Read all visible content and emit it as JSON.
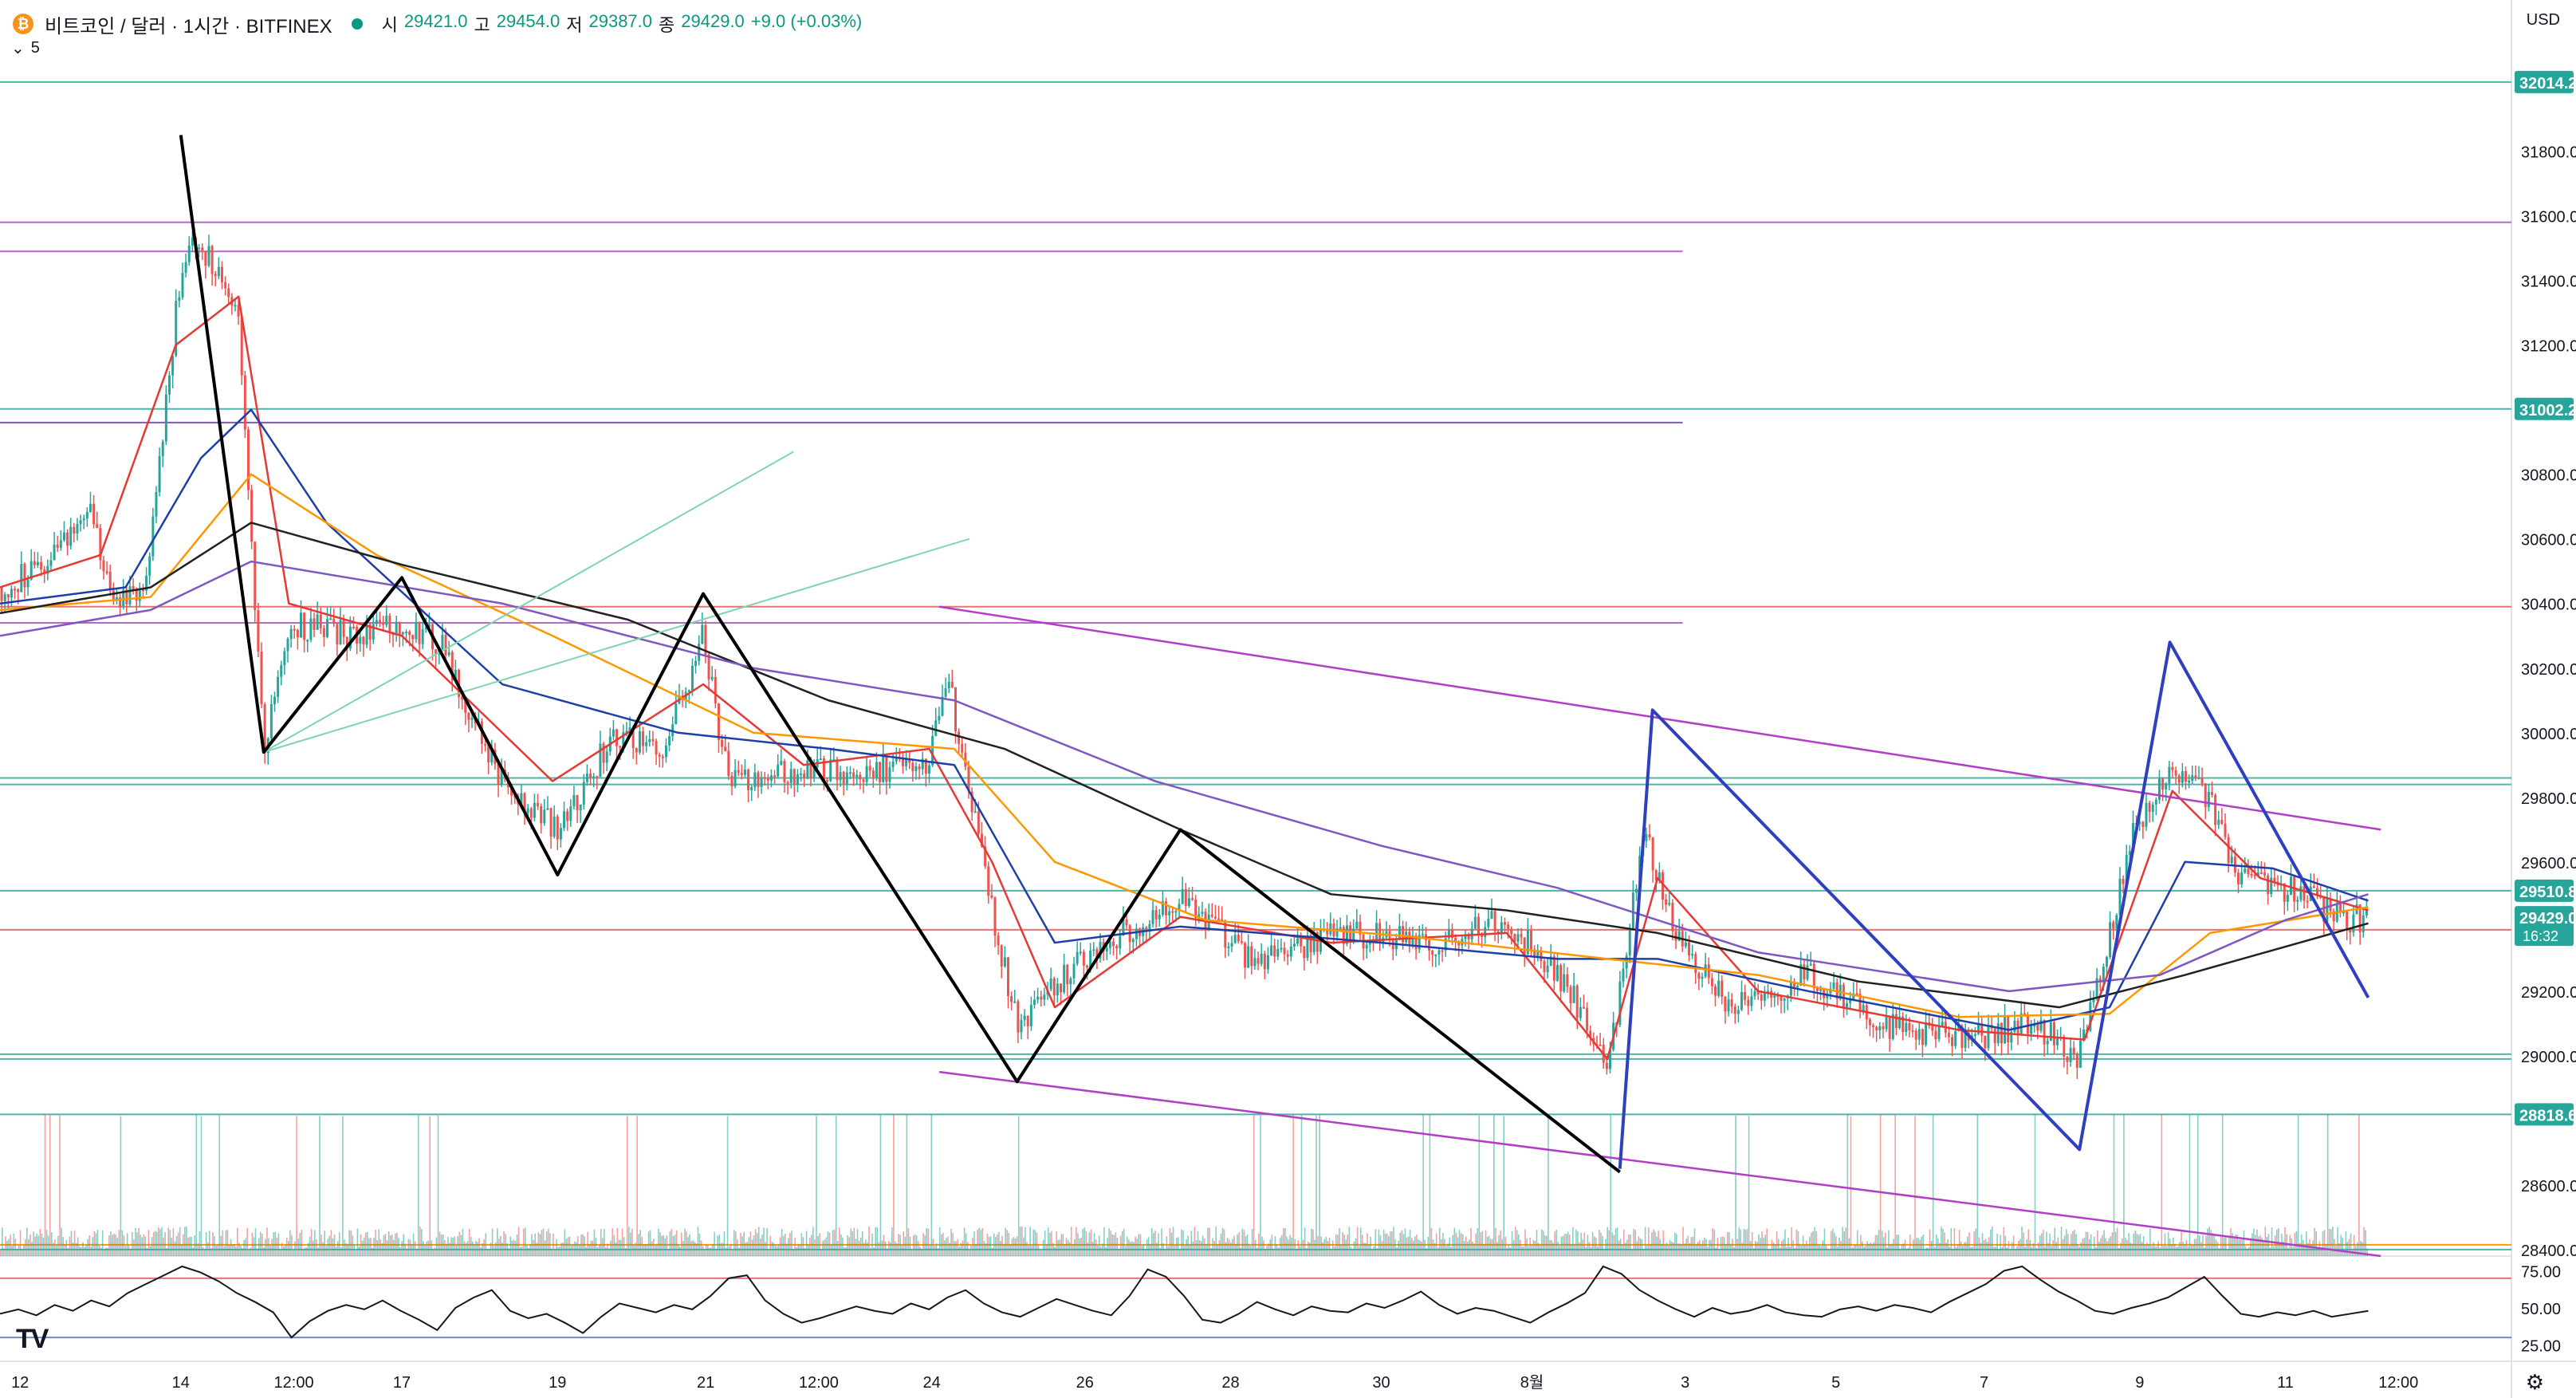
{
  "header": {
    "symbol": "비트코인 / 달러 · 1시간 · BITFINEX",
    "coin_glyph": "₿",
    "open_label": "시",
    "open": "29421.0",
    "high_label": "고",
    "high": "29454.0",
    "low_label": "저",
    "low": "29387.0",
    "close_label": "종",
    "close": "29429.0",
    "change": "+9.0 (+0.03%)",
    "sub_caret": "⌄",
    "sub_value": "5",
    "currency": "USD"
  },
  "colors": {
    "up": "#26a69a",
    "down": "#ef5350",
    "hline_teal": "#4db6ac",
    "hline_red": "#e57373",
    "hline_purple": "#ba68c8",
    "ema_fast": "#e53935",
    "ema_mid": "#1e3fa8",
    "ema_orange": "#ff9800",
    "ema_black": "#212121",
    "ema_purple": "#7e57c2",
    "pattern_black": "#000000",
    "pattern_blue": "#2e3fbf",
    "channel_purple": "#b23ec8",
    "fib_teal": "#7fd3b4"
  },
  "icons": {
    "logo": "tradingview-logo",
    "settings": "gear-icon"
  },
  "logo_text": "TV",
  "settings_glyph": "⚙",
  "chart_data": [
    {
      "type": "candlestick",
      "title": "비트코인 / 달러 · 1시간 · BITFINEX",
      "ylim": [
        28380,
        32120
      ],
      "x_ticks": [
        "12",
        "14",
        "12:00",
        "17",
        "19",
        "21",
        "12:00",
        "24",
        "26",
        "28",
        "30",
        "8월",
        "3",
        "5",
        "7",
        "9",
        "11",
        "12:00"
      ],
      "y_ticks": [
        31800,
        31600,
        31400,
        31200,
        30800,
        30600,
        30400,
        30200,
        30000,
        29800,
        29600,
        29200,
        29000,
        28600,
        28400
      ],
      "price_badges": [
        {
          "label": "32014.2",
          "value": 32014.2,
          "color": "#26a69a"
        },
        {
          "label": "31002.2",
          "value": 31002.2,
          "color": "#26a69a"
        },
        {
          "label": "29510.8",
          "value": 29510.8,
          "color": "#26a69a"
        },
        {
          "label": "29429.0",
          "value": 29429.0,
          "color": "#26a69a",
          "timer": "16:32"
        },
        {
          "label": "28818.6",
          "value": 28818.6,
          "color": "#26a69a"
        }
      ],
      "horizontal_levels": [
        {
          "value": 32014.2,
          "color": "#4db6ac",
          "extent": "full"
        },
        {
          "value": 31580,
          "color": "#ba68c8",
          "extent": "full"
        },
        {
          "value": 31490,
          "color": "#ba68c8",
          "extent": "partial"
        },
        {
          "value": 31002.2,
          "color": "#4db6ac",
          "extent": "full"
        },
        {
          "value": 30960,
          "color": "#7e57c2",
          "extent": "partial"
        },
        {
          "value": 30390,
          "color": "#e57373",
          "extent": "full"
        },
        {
          "value": 30340,
          "color": "#ba68c8",
          "extent": "partial"
        },
        {
          "value": 29860,
          "color": "#4db6ac",
          "extent": "full"
        },
        {
          "value": 29840,
          "color": "#4db6ac",
          "extent": "full"
        },
        {
          "value": 29510.8,
          "color": "#4db6ac",
          "extent": "full"
        },
        {
          "value": 29390,
          "color": "#e57373",
          "extent": "full"
        },
        {
          "value": 29005,
          "color": "#4db6ac",
          "extent": "full"
        },
        {
          "value": 28990,
          "color": "#4db6ac",
          "extent": "full"
        },
        {
          "value": 28818.6,
          "color": "#4db6ac",
          "extent": "full"
        },
        {
          "value": 28415,
          "color": "#ff9800",
          "extent": "full"
        },
        {
          "value": 28400,
          "color": "#4db6ac",
          "extent": "full"
        }
      ],
      "zigzag_black": [
        {
          "t": 0.072,
          "p": 31850
        },
        {
          "t": 0.105,
          "p": 29940
        },
        {
          "t": 0.16,
          "p": 30480
        },
        {
          "t": 0.222,
          "p": 29560
        },
        {
          "t": 0.28,
          "p": 30430
        },
        {
          "t": 0.405,
          "p": 28920
        },
        {
          "t": 0.47,
          "p": 29700
        },
        {
          "t": 0.645,
          "p": 28640
        }
      ],
      "zigzag_blue": [
        {
          "t": 0.645,
          "p": 28650
        },
        {
          "t": 0.658,
          "p": 30070
        },
        {
          "t": 0.828,
          "p": 28710
        },
        {
          "t": 0.864,
          "p": 30280
        },
        {
          "t": 0.943,
          "p": 29180
        }
      ],
      "channel_upper": [
        {
          "t": 0.374,
          "p": 30390
        },
        {
          "t": 0.948,
          "p": 29700
        }
      ],
      "channel_lower": [
        {
          "t": 0.374,
          "p": 28950
        },
        {
          "t": 0.948,
          "p": 28380
        }
      ],
      "fib_lines": [
        [
          {
            "t": 0.105,
            "p": 29940
          },
          {
            "t": 0.316,
            "p": 30870
          }
        ],
        [
          {
            "t": 0.105,
            "p": 29940
          },
          {
            "t": 0.386,
            "p": 30600
          }
        ]
      ],
      "price_path": [
        {
          "t": 0.0,
          "p": 30450
        },
        {
          "t": 0.02,
          "p": 30520
        },
        {
          "t": 0.035,
          "p": 30700
        },
        {
          "t": 0.045,
          "p": 30400
        },
        {
          "t": 0.058,
          "p": 30450
        },
        {
          "t": 0.07,
          "p": 31300
        },
        {
          "t": 0.077,
          "p": 31550
        },
        {
          "t": 0.085,
          "p": 31450
        },
        {
          "t": 0.095,
          "p": 31300
        },
        {
          "t": 0.105,
          "p": 29950
        },
        {
          "t": 0.115,
          "p": 30340
        },
        {
          "t": 0.14,
          "p": 30300
        },
        {
          "t": 0.16,
          "p": 30350
        },
        {
          "t": 0.175,
          "p": 30280
        },
        {
          "t": 0.2,
          "p": 29850
        },
        {
          "t": 0.222,
          "p": 29700
        },
        {
          "t": 0.245,
          "p": 30000
        },
        {
          "t": 0.265,
          "p": 29950
        },
        {
          "t": 0.28,
          "p": 30300
        },
        {
          "t": 0.29,
          "p": 29850
        },
        {
          "t": 0.315,
          "p": 29880
        },
        {
          "t": 0.345,
          "p": 29880
        },
        {
          "t": 0.37,
          "p": 29920
        },
        {
          "t": 0.378,
          "p": 30150
        },
        {
          "t": 0.385,
          "p": 29850
        },
        {
          "t": 0.395,
          "p": 29450
        },
        {
          "t": 0.405,
          "p": 29100
        },
        {
          "t": 0.43,
          "p": 29300
        },
        {
          "t": 0.47,
          "p": 29480
        },
        {
          "t": 0.5,
          "p": 29280
        },
        {
          "t": 0.53,
          "p": 29380
        },
        {
          "t": 0.57,
          "p": 29350
        },
        {
          "t": 0.6,
          "p": 29420
        },
        {
          "t": 0.625,
          "p": 29200
        },
        {
          "t": 0.64,
          "p": 28950
        },
        {
          "t": 0.655,
          "p": 29700
        },
        {
          "t": 0.668,
          "p": 29350
        },
        {
          "t": 0.69,
          "p": 29150
        },
        {
          "t": 0.72,
          "p": 29250
        },
        {
          "t": 0.75,
          "p": 29100
        },
        {
          "t": 0.78,
          "p": 29050
        },
        {
          "t": 0.81,
          "p": 29100
        },
        {
          "t": 0.828,
          "p": 28990
        },
        {
          "t": 0.85,
          "p": 29700
        },
        {
          "t": 0.864,
          "p": 29900
        },
        {
          "t": 0.88,
          "p": 29800
        },
        {
          "t": 0.89,
          "p": 29550
        },
        {
          "t": 0.91,
          "p": 29520
        },
        {
          "t": 0.935,
          "p": 29420
        },
        {
          "t": 0.943,
          "p": 29429
        }
      ],
      "moving_averages": [
        {
          "color": "#e53935",
          "points": [
            {
              "t": 0.0,
              "p": 30450
            },
            {
              "t": 0.04,
              "p": 30550
            },
            {
              "t": 0.07,
              "p": 31200
            },
            {
              "t": 0.095,
              "p": 31350
            },
            {
              "t": 0.115,
              "p": 30400
            },
            {
              "t": 0.16,
              "p": 30300
            },
            {
              "t": 0.22,
              "p": 29850
            },
            {
              "t": 0.28,
              "p": 30150
            },
            {
              "t": 0.32,
              "p": 29900
            },
            {
              "t": 0.37,
              "p": 29950
            },
            {
              "t": 0.395,
              "p": 29600
            },
            {
              "t": 0.42,
              "p": 29150
            },
            {
              "t": 0.47,
              "p": 29430
            },
            {
              "t": 0.53,
              "p": 29350
            },
            {
              "t": 0.6,
              "p": 29380
            },
            {
              "t": 0.64,
              "p": 28990
            },
            {
              "t": 0.66,
              "p": 29550
            },
            {
              "t": 0.7,
              "p": 29200
            },
            {
              "t": 0.78,
              "p": 29080
            },
            {
              "t": 0.83,
              "p": 29050
            },
            {
              "t": 0.865,
              "p": 29820
            },
            {
              "t": 0.9,
              "p": 29550
            },
            {
              "t": 0.943,
              "p": 29450
            }
          ]
        },
        {
          "color": "#1e3fa8",
          "points": [
            {
              "t": 0.0,
              "p": 30400
            },
            {
              "t": 0.05,
              "p": 30450
            },
            {
              "t": 0.08,
              "p": 30850
            },
            {
              "t": 0.1,
              "p": 31000
            },
            {
              "t": 0.13,
              "p": 30650
            },
            {
              "t": 0.2,
              "p": 30150
            },
            {
              "t": 0.27,
              "p": 30000
            },
            {
              "t": 0.33,
              "p": 29950
            },
            {
              "t": 0.38,
              "p": 29900
            },
            {
              "t": 0.42,
              "p": 29350
            },
            {
              "t": 0.47,
              "p": 29400
            },
            {
              "t": 0.55,
              "p": 29350
            },
            {
              "t": 0.62,
              "p": 29300
            },
            {
              "t": 0.66,
              "p": 29300
            },
            {
              "t": 0.72,
              "p": 29200
            },
            {
              "t": 0.8,
              "p": 29080
            },
            {
              "t": 0.84,
              "p": 29150
            },
            {
              "t": 0.87,
              "p": 29600
            },
            {
              "t": 0.905,
              "p": 29580
            },
            {
              "t": 0.943,
              "p": 29480
            }
          ]
        },
        {
          "color": "#ff9800",
          "points": [
            {
              "t": 0.0,
              "p": 30380
            },
            {
              "t": 0.06,
              "p": 30420
            },
            {
              "t": 0.1,
              "p": 30800
            },
            {
              "t": 0.15,
              "p": 30550
            },
            {
              "t": 0.22,
              "p": 30300
            },
            {
              "t": 0.3,
              "p": 30000
            },
            {
              "t": 0.38,
              "p": 29950
            },
            {
              "t": 0.42,
              "p": 29600
            },
            {
              "t": 0.48,
              "p": 29420
            },
            {
              "t": 0.56,
              "p": 29370
            },
            {
              "t": 0.64,
              "p": 29300
            },
            {
              "t": 0.7,
              "p": 29250
            },
            {
              "t": 0.78,
              "p": 29120
            },
            {
              "t": 0.84,
              "p": 29130
            },
            {
              "t": 0.88,
              "p": 29380
            },
            {
              "t": 0.943,
              "p": 29460
            }
          ]
        },
        {
          "color": "#212121",
          "points": [
            {
              "t": 0.0,
              "p": 30370
            },
            {
              "t": 0.06,
              "p": 30450
            },
            {
              "t": 0.1,
              "p": 30650
            },
            {
              "t": 0.16,
              "p": 30520
            },
            {
              "t": 0.25,
              "p": 30350
            },
            {
              "t": 0.33,
              "p": 30100
            },
            {
              "t": 0.4,
              "p": 29950
            },
            {
              "t": 0.47,
              "p": 29700
            },
            {
              "t": 0.53,
              "p": 29500
            },
            {
              "t": 0.6,
              "p": 29450
            },
            {
              "t": 0.66,
              "p": 29380
            },
            {
              "t": 0.74,
              "p": 29230
            },
            {
              "t": 0.82,
              "p": 29150
            },
            {
              "t": 0.87,
              "p": 29250
            },
            {
              "t": 0.943,
              "p": 29410
            }
          ]
        },
        {
          "color": "#7e57c2",
          "points": [
            {
              "t": 0.0,
              "p": 30300
            },
            {
              "t": 0.06,
              "p": 30380
            },
            {
              "t": 0.1,
              "p": 30530
            },
            {
              "t": 0.2,
              "p": 30400
            },
            {
              "t": 0.3,
              "p": 30200
            },
            {
              "t": 0.38,
              "p": 30100
            },
            {
              "t": 0.46,
              "p": 29850
            },
            {
              "t": 0.55,
              "p": 29650
            },
            {
              "t": 0.62,
              "p": 29520
            },
            {
              "t": 0.7,
              "p": 29320
            },
            {
              "t": 0.8,
              "p": 29200
            },
            {
              "t": 0.86,
              "p": 29250
            },
            {
              "t": 0.91,
              "p": 29420
            },
            {
              "t": 0.943,
              "p": 29500
            }
          ]
        }
      ]
    },
    {
      "type": "line",
      "title": "",
      "ylim": [
        15,
        85
      ],
      "y_ticks": [
        75.0,
        50.0,
        25.0
      ],
      "bands": [
        {
          "value": 70,
          "color": "#e57373"
        },
        {
          "value": 30,
          "color": "#7986cb"
        }
      ],
      "values": [
        46,
        49,
        45,
        52,
        48,
        55,
        51,
        60,
        66,
        72,
        78,
        74,
        68,
        60,
        54,
        47,
        30,
        41,
        48,
        52,
        49,
        55,
        48,
        42,
        35,
        50,
        57,
        62,
        48,
        43,
        46,
        40,
        33,
        44,
        53,
        50,
        47,
        52,
        49,
        58,
        70,
        72,
        55,
        46,
        40,
        43,
        47,
        51,
        48,
        46,
        53,
        49,
        57,
        62,
        53,
        47,
        44,
        50,
        56,
        52,
        48,
        45,
        58,
        76,
        71,
        58,
        42,
        40,
        46,
        54,
        49,
        45,
        51,
        48,
        47,
        53,
        50,
        55,
        61,
        52,
        46,
        50,
        48,
        44,
        40,
        47,
        53,
        60,
        78,
        73,
        62,
        55,
        49,
        44,
        50,
        46,
        48,
        52,
        47,
        45,
        44,
        49,
        51,
        48,
        52,
        50,
        47,
        54,
        60,
        66,
        75,
        78,
        69,
        61,
        55,
        48,
        46,
        50,
        53,
        57,
        64,
        71,
        58,
        46,
        44,
        47,
        45,
        48,
        44,
        46,
        48
      ]
    }
  ]
}
